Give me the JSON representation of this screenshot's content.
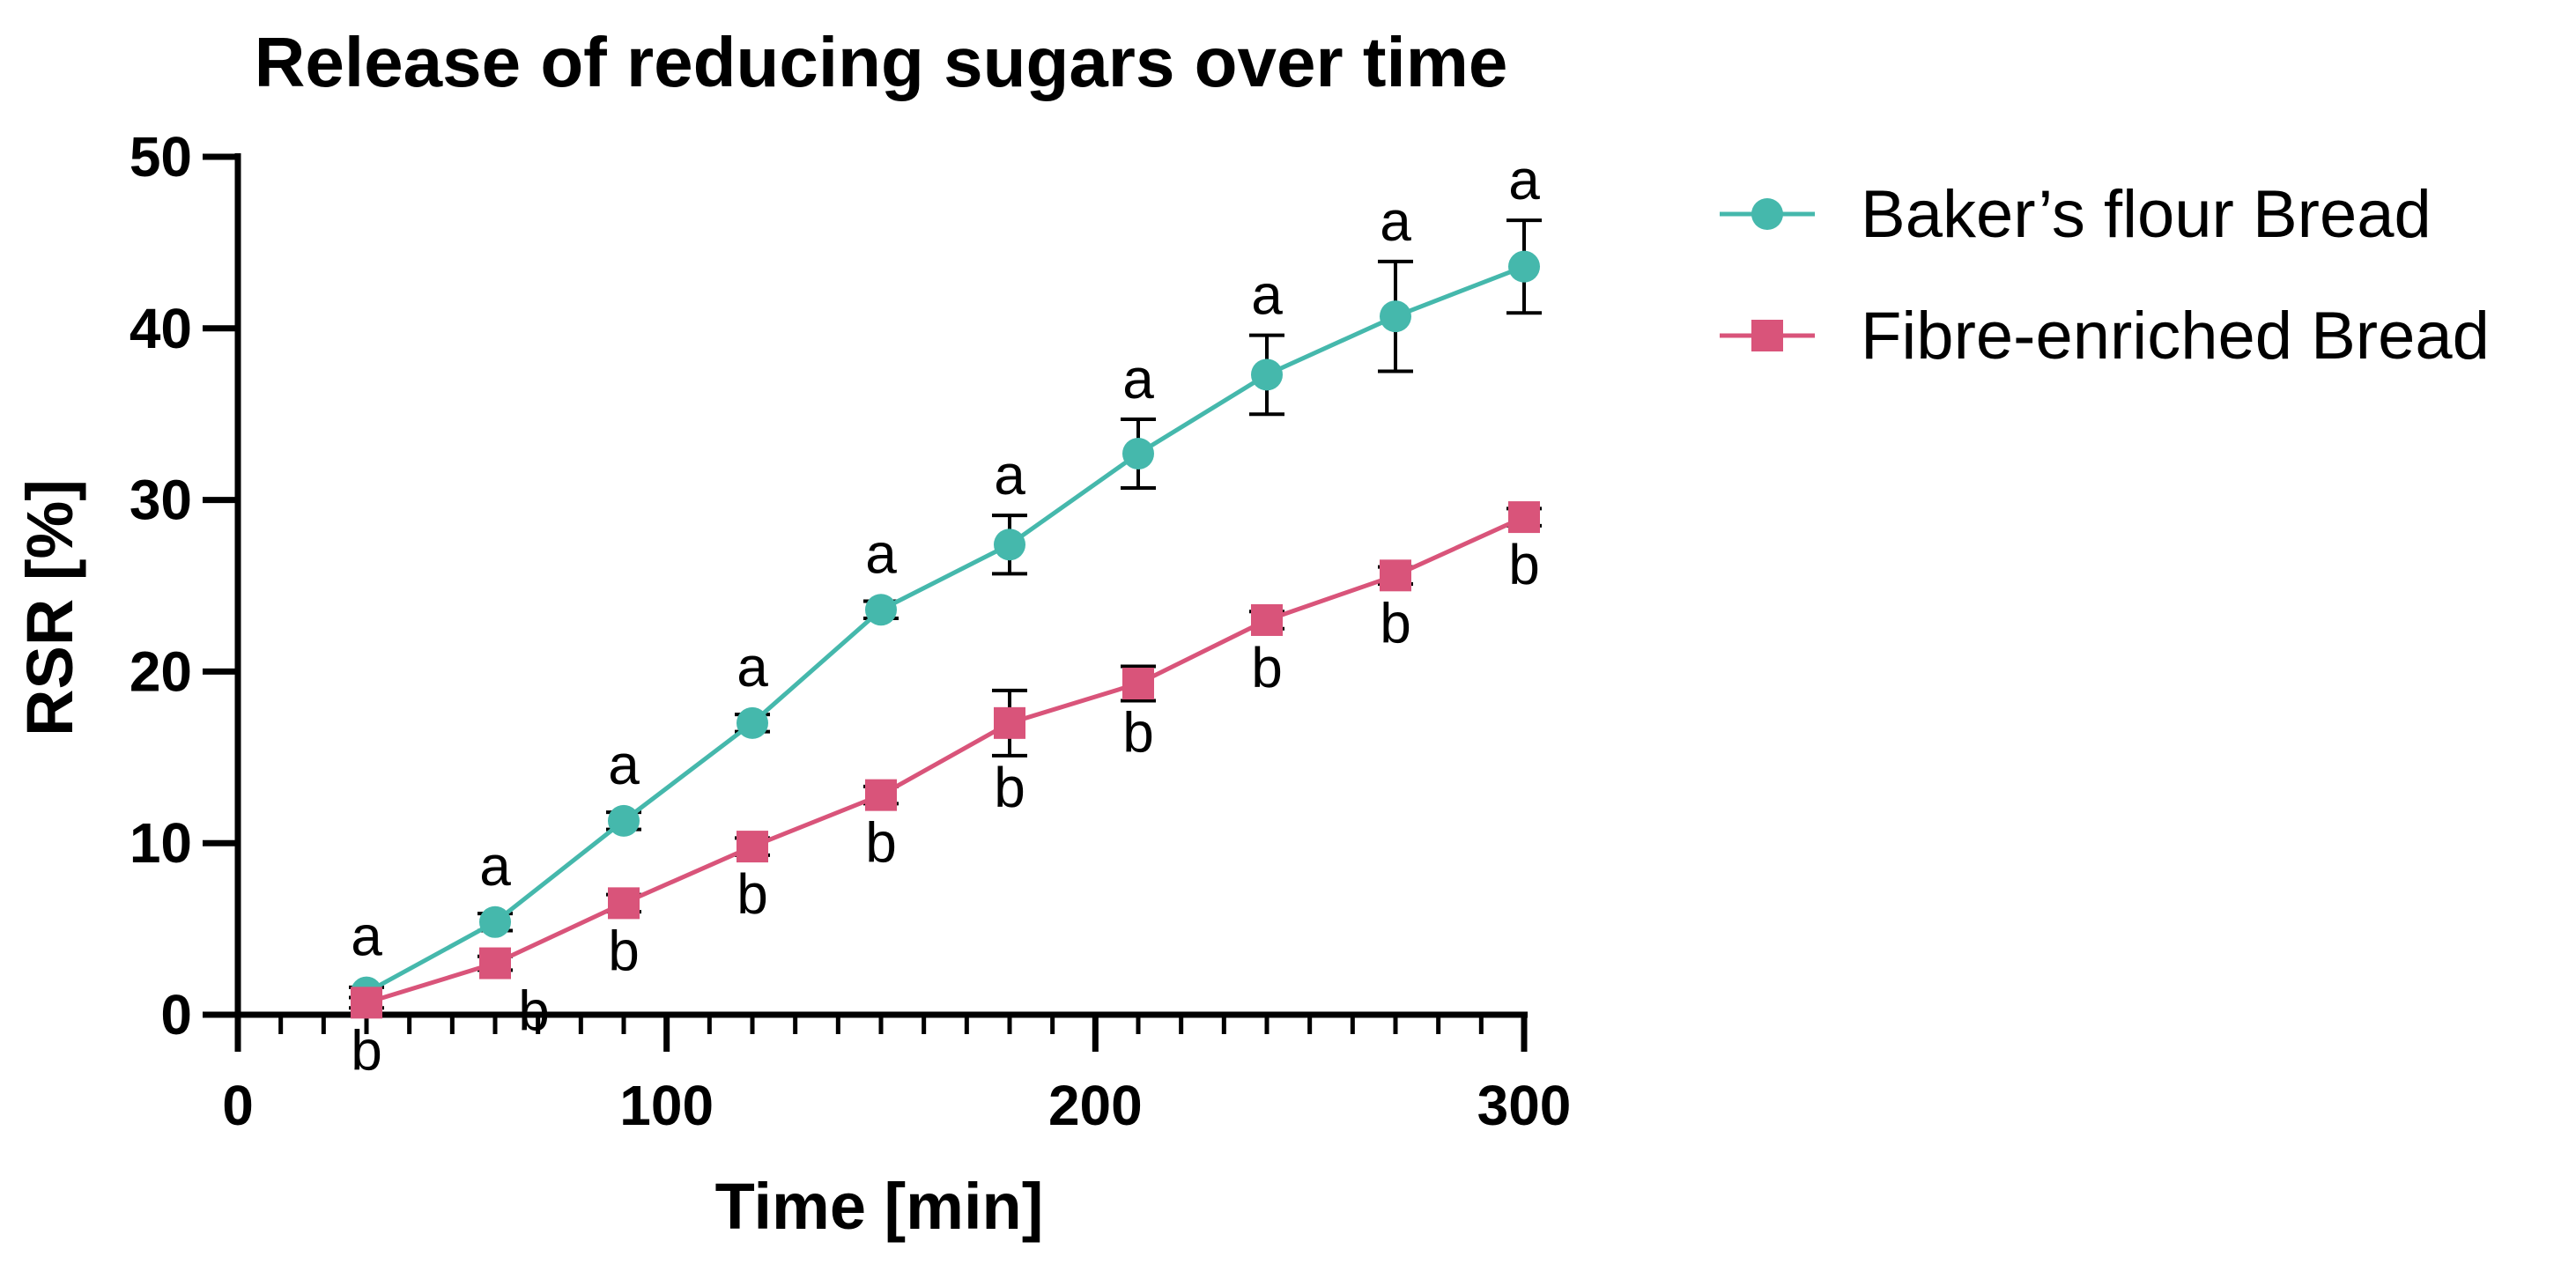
{
  "chart_data": {
    "type": "line",
    "title": "Release of reducing sugars over time",
    "xlabel": "Time [min]",
    "ylabel": "RSR [%]",
    "xlim": [
      0,
      300
    ],
    "ylim": [
      0,
      50
    ],
    "x_ticks": [
      0,
      100,
      200,
      300
    ],
    "y_ticks": [
      0,
      10,
      20,
      30,
      40,
      50
    ],
    "x_tick_labels": [
      "0",
      "100",
      "200",
      "300"
    ],
    "y_tick_labels": [
      "0",
      "10",
      "20",
      "30",
      "40",
      "50"
    ],
    "x_minor_step": 10,
    "legend_position": "top-right-outside",
    "x": [
      30,
      60,
      90,
      120,
      150,
      180,
      210,
      240,
      270,
      300
    ],
    "series": [
      {
        "name": "Baker’s flour Bread",
        "marker": "circle",
        "color": "#45b8ac",
        "values": [
          1.3,
          5.4,
          11.3,
          17.0,
          23.6,
          27.4,
          32.7,
          37.3,
          40.7,
          43.6
        ],
        "error": [
          0.3,
          0.5,
          0.5,
          0.5,
          0.5,
          1.7,
          2.0,
          2.3,
          3.2,
          2.7
        ],
        "labels": [
          "a",
          "a",
          "a",
          "a",
          "a",
          "a",
          "a",
          "a",
          "a",
          "a"
        ],
        "label_side": "above"
      },
      {
        "name": "Fibre-enriched Bread",
        "marker": "square",
        "color": "#d9547a",
        "values": [
          0.7,
          3.0,
          6.5,
          9.8,
          12.8,
          17.0,
          19.3,
          23.0,
          25.6,
          29.0
        ],
        "error": [
          0.3,
          0.4,
          0.5,
          0.5,
          0.5,
          1.9,
          1.0,
          0.5,
          0.5,
          0.5
        ],
        "labels": [
          "b",
          "b",
          "b",
          "b",
          "b",
          "b",
          "b",
          "b",
          "b",
          "b"
        ],
        "label_side": "below"
      }
    ]
  }
}
